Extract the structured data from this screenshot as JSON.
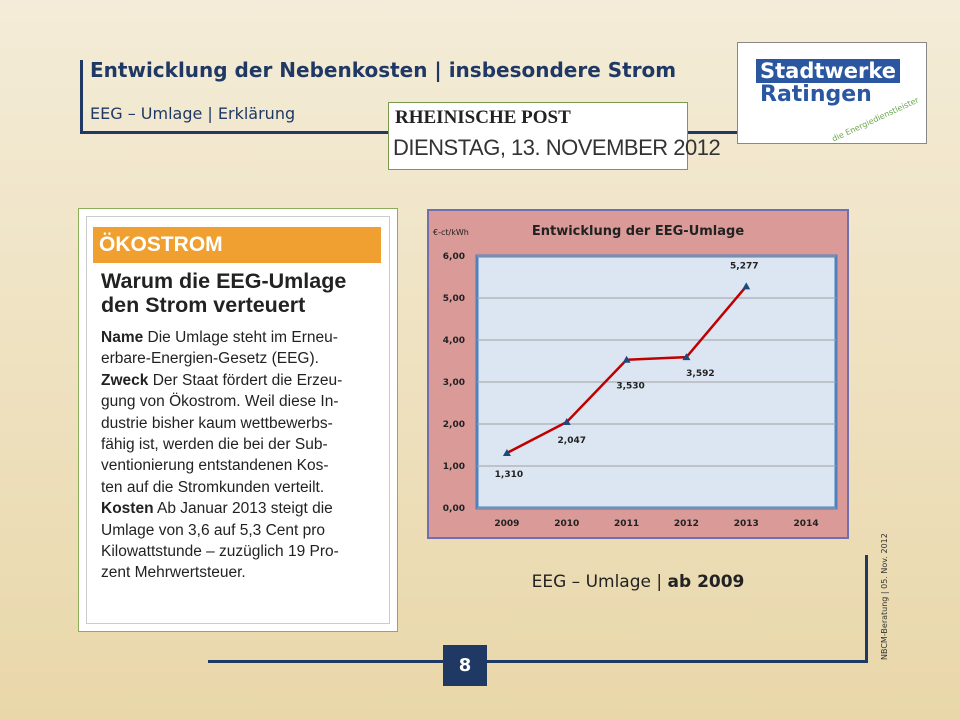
{
  "header": {
    "title": "Entwicklung der Nebenkosten | insbesondere Strom",
    "subtitle": "EEG – Umlage | Erklärung"
  },
  "logo": {
    "line1": "Stadtwerke",
    "line2": "Ratingen",
    "tagline": "die Energiedienstleister"
  },
  "newspaper": {
    "name": "RHEINISCHE POST",
    "date": "DIENSTAG, 13. NOVEMBER 2012"
  },
  "article": {
    "banner": "ÖKOSTROM",
    "headline": [
      "Warum die EEG-Umlage",
      "den Strom verteuert"
    ],
    "paragraphs": [
      {
        "term": "Name",
        "lines": [
          "Die Umlage steht im Erneu-",
          "erbare-Energien-Gesetz (EEG)."
        ]
      },
      {
        "term": "Zweck",
        "lines": [
          "Der Staat fördert die Erzeu-",
          "gung von Ökostrom. Weil diese In-",
          "dustrie bisher kaum wettbewerbs-",
          "fähig ist, werden die bei der Sub-",
          "ventionierung entstandenen Kos-",
          "ten auf die Stromkunden verteilt."
        ]
      },
      {
        "term": "Kosten",
        "lines": [
          "Ab Januar 2013 steigt die",
          "Umlage von 3,6 auf 5,3 Cent pro",
          "Kilowattstunde – zuzüglich 19 Pro-",
          "zent Mehrwertsteuer."
        ]
      }
    ]
  },
  "chart_data": {
    "type": "line",
    "title": "Entwicklung der EEG-Umlage",
    "y_label": "€-ct/kWh",
    "categories": [
      "2009",
      "2010",
      "2011",
      "2012",
      "2013",
      "2014"
    ],
    "series": [
      {
        "name": "EEG-Umlage",
        "color": "#c00000",
        "marker_color": "#1f497d",
        "values": [
          1.31,
          2.047,
          3.53,
          3.592,
          5.277,
          null
        ],
        "value_labels": [
          "1,310",
          "2,047",
          "3,530",
          "3,592",
          "5,277",
          null
        ]
      }
    ],
    "ylim": [
      0,
      6
    ],
    "yticks": [
      {
        "value": 0,
        "label": "0,00"
      },
      {
        "value": 1,
        "label": "1,00"
      },
      {
        "value": 2,
        "label": "2,00"
      },
      {
        "value": 3,
        "label": "3,00"
      },
      {
        "value": 4,
        "label": "4,00"
      },
      {
        "value": 5,
        "label": "5,00"
      },
      {
        "value": 6,
        "label": "6,00"
      }
    ],
    "grid": true
  },
  "caption": {
    "text": "EEG – Umlage |",
    "bold": "ab 2009"
  },
  "footer": {
    "source": "NBCM-Beratung | 05. Nov. 2012",
    "page": "8"
  }
}
